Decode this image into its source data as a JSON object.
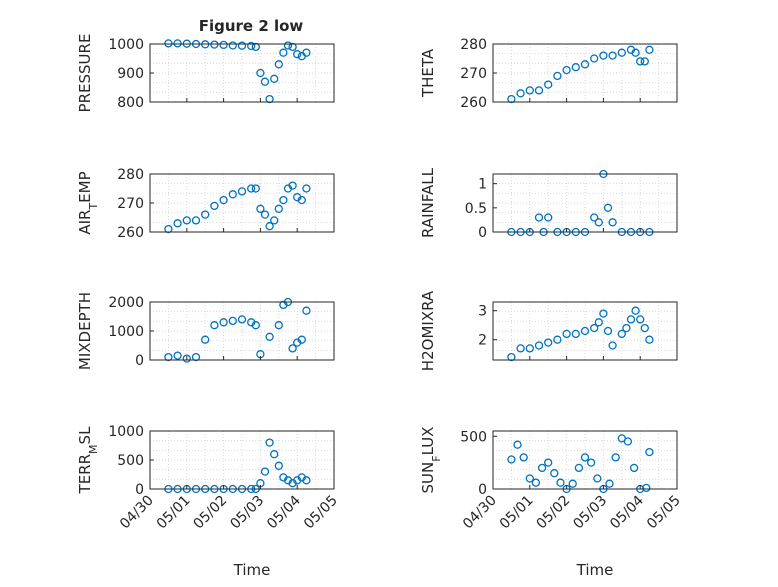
{
  "figure": {
    "title": "Figure 2 low",
    "xlabel": "Time",
    "marker_color": "#0072bd"
  },
  "x_ticks": [
    "04/30",
    "05/01",
    "05/02",
    "05/03",
    "05/04",
    "05/05"
  ],
  "chart_data": [
    {
      "type": "scatter",
      "panel": "pressure",
      "ylabel": "PRESSURE",
      "ylim": [
        800,
        1000
      ],
      "yticks": [
        "800",
        "900",
        "1000"
      ],
      "grid": true,
      "x": [
        "04/30 12:00",
        "04/30 18:00",
        "05/01 00:00",
        "05/01 06:00",
        "05/01 12:00",
        "05/01 18:00",
        "05/02 00:00",
        "05/02 06:00",
        "05/02 12:00",
        "05/02 18:00",
        "05/02 21:00",
        "05/03 00:00",
        "05/03 03:00",
        "05/03 06:00",
        "05/03 09:00",
        "05/03 12:00",
        "05/03 15:00",
        "05/03 18:00",
        "05/03 21:00",
        "05/04 00:00",
        "05/04 03:00",
        "05/04 06:00"
      ],
      "y": [
        1002,
        1002,
        1001,
        1000,
        999,
        998,
        997,
        995,
        994,
        993,
        990,
        900,
        870,
        810,
        880,
        930,
        970,
        995,
        990,
        965,
        958,
        970
      ]
    },
    {
      "type": "scatter",
      "panel": "theta",
      "ylabel": "THETA",
      "ylim": [
        260,
        280
      ],
      "yticks": [
        "260",
        "270",
        "280"
      ],
      "grid": true,
      "x": [
        "04/30 12:00",
        "04/30 18:00",
        "05/01 00:00",
        "05/01 06:00",
        "05/01 12:00",
        "05/01 18:00",
        "05/02 00:00",
        "05/02 06:00",
        "05/02 12:00",
        "05/02 18:00",
        "05/03 00:00",
        "05/03 06:00",
        "05/03 12:00",
        "05/03 18:00",
        "05/03 21:00",
        "05/04 00:00",
        "05/04 03:00",
        "05/04 06:00"
      ],
      "y": [
        261,
        263,
        264,
        264,
        266,
        269,
        271,
        272,
        273,
        275,
        276,
        276,
        277,
        278,
        277,
        274,
        274,
        278
      ]
    },
    {
      "type": "scatter",
      "panel": "air_temp",
      "ylabel": "AIR_TEMP",
      "ylim": [
        260,
        280
      ],
      "yticks": [
        "260",
        "270",
        "280"
      ],
      "grid": true,
      "x": [
        "04/30 12:00",
        "04/30 18:00",
        "05/01 00:00",
        "05/01 06:00",
        "05/01 12:00",
        "05/01 18:00",
        "05/02 00:00",
        "05/02 06:00",
        "05/02 12:00",
        "05/02 18:00",
        "05/02 21:00",
        "05/03 00:00",
        "05/03 03:00",
        "05/03 06:00",
        "05/03 09:00",
        "05/03 12:00",
        "05/03 15:00",
        "05/03 18:00",
        "05/03 21:00",
        "05/04 00:00",
        "05/04 03:00",
        "05/04 06:00"
      ],
      "y": [
        261,
        263,
        264,
        264,
        266,
        269,
        271,
        273,
        274,
        275,
        275,
        268,
        266,
        262,
        264,
        268,
        271,
        275,
        276,
        272,
        271,
        275
      ]
    },
    {
      "type": "scatter",
      "panel": "rainfall",
      "ylabel": "RAINFALL",
      "ylim": [
        0,
        1.2
      ],
      "yticks": [
        "0",
        "0.5",
        "1"
      ],
      "grid": true,
      "x": [
        "04/30 12:00",
        "04/30 18:00",
        "05/01 00:00",
        "05/01 06:00",
        "05/01 09:00",
        "05/01 12:00",
        "05/01 18:00",
        "05/02 00:00",
        "05/02 06:00",
        "05/02 12:00",
        "05/02 18:00",
        "05/02 21:00",
        "05/03 00:00",
        "05/03 03:00",
        "05/03 06:00",
        "05/03 12:00",
        "05/03 18:00",
        "05/04 00:00",
        "05/04 06:00"
      ],
      "y": [
        0,
        0,
        0,
        0.3,
        0,
        0.3,
        0,
        0,
        0,
        0,
        0.3,
        0.2,
        1.2,
        0.5,
        0.2,
        0,
        0,
        0,
        0
      ]
    },
    {
      "type": "scatter",
      "panel": "mixdepth",
      "ylabel": "MIXDEPTH",
      "ylim": [
        0,
        2000
      ],
      "yticks": [
        "0",
        "1000",
        "2000"
      ],
      "grid": true,
      "x": [
        "04/30 12:00",
        "04/30 18:00",
        "05/01 00:00",
        "05/01 06:00",
        "05/01 12:00",
        "05/01 18:00",
        "05/02 00:00",
        "05/02 06:00",
        "05/02 12:00",
        "05/02 18:00",
        "05/02 21:00",
        "05/03 00:00",
        "05/03 06:00",
        "05/03 12:00",
        "05/03 15:00",
        "05/03 18:00",
        "05/03 21:00",
        "05/04 00:00",
        "05/04 03:00",
        "05/04 06:00"
      ],
      "y": [
        100,
        150,
        50,
        100,
        700,
        1200,
        1300,
        1350,
        1400,
        1300,
        1200,
        200,
        800,
        1200,
        1900,
        2000,
        400,
        600,
        700,
        1700
      ]
    },
    {
      "type": "scatter",
      "panel": "h2omixra",
      "ylabel": "H2OMIXRA",
      "ylim": [
        1.3,
        3.3
      ],
      "yticks": [
        "2",
        "3"
      ],
      "grid": true,
      "x": [
        "04/30 12:00",
        "04/30 18:00",
        "05/01 00:00",
        "05/01 06:00",
        "05/01 12:00",
        "05/01 18:00",
        "05/02 00:00",
        "05/02 06:00",
        "05/02 12:00",
        "05/02 18:00",
        "05/02 21:00",
        "05/03 00:00",
        "05/03 03:00",
        "05/03 06:00",
        "05/03 12:00",
        "05/03 15:00",
        "05/03 18:00",
        "05/03 21:00",
        "05/04 00:00",
        "05/04 03:00",
        "05/04 06:00"
      ],
      "y": [
        1.4,
        1.7,
        1.7,
        1.8,
        1.9,
        2.0,
        2.2,
        2.2,
        2.3,
        2.4,
        2.6,
        2.9,
        2.3,
        1.8,
        2.2,
        2.4,
        2.7,
        3.0,
        2.7,
        2.4,
        2.0
      ]
    },
    {
      "type": "scatter",
      "panel": "terr_msl",
      "ylabel": "TERR_MSL",
      "ylim": [
        0,
        1000
      ],
      "yticks": [
        "0",
        "500",
        "1000"
      ],
      "grid": true,
      "x": [
        "04/30 12:00",
        "04/30 18:00",
        "05/01 00:00",
        "05/01 06:00",
        "05/01 12:00",
        "05/01 18:00",
        "05/02 00:00",
        "05/02 06:00",
        "05/02 12:00",
        "05/02 18:00",
        "05/02 21:00",
        "05/03 00:00",
        "05/03 03:00",
        "05/03 06:00",
        "05/03 09:00",
        "05/03 12:00",
        "05/03 15:00",
        "05/03 18:00",
        "05/03 21:00",
        "05/04 00:00",
        "05/04 03:00",
        "05/04 06:00"
      ],
      "y": [
        0,
        0,
        0,
        0,
        0,
        0,
        0,
        0,
        0,
        0,
        0,
        100,
        300,
        800,
        600,
        400,
        200,
        150,
        100,
        150,
        200,
        150
      ]
    },
    {
      "type": "scatter",
      "panel": "sun_flux",
      "ylabel": "SUN_FLUX",
      "ylim": [
        0,
        550
      ],
      "yticks": [
        "0",
        "500"
      ],
      "grid": true,
      "x": [
        "04/30 12:00",
        "04/30 16:00",
        "04/30 20:00",
        "05/01 00:00",
        "05/01 04:00",
        "05/01 08:00",
        "05/01 12:00",
        "05/01 16:00",
        "05/01 20:00",
        "05/02 00:00",
        "05/02 04:00",
        "05/02 08:00",
        "05/02 12:00",
        "05/02 16:00",
        "05/02 20:00",
        "05/03 00:00",
        "05/03 04:00",
        "05/03 08:00",
        "05/03 12:00",
        "05/03 16:00",
        "05/03 20:00",
        "05/04 00:00",
        "05/04 04:00",
        "05/04 06:00"
      ],
      "y": [
        280,
        420,
        300,
        100,
        60,
        200,
        250,
        150,
        60,
        0,
        50,
        200,
        300,
        250,
        100,
        0,
        50,
        300,
        480,
        450,
        200,
        0,
        10,
        350
      ]
    }
  ]
}
